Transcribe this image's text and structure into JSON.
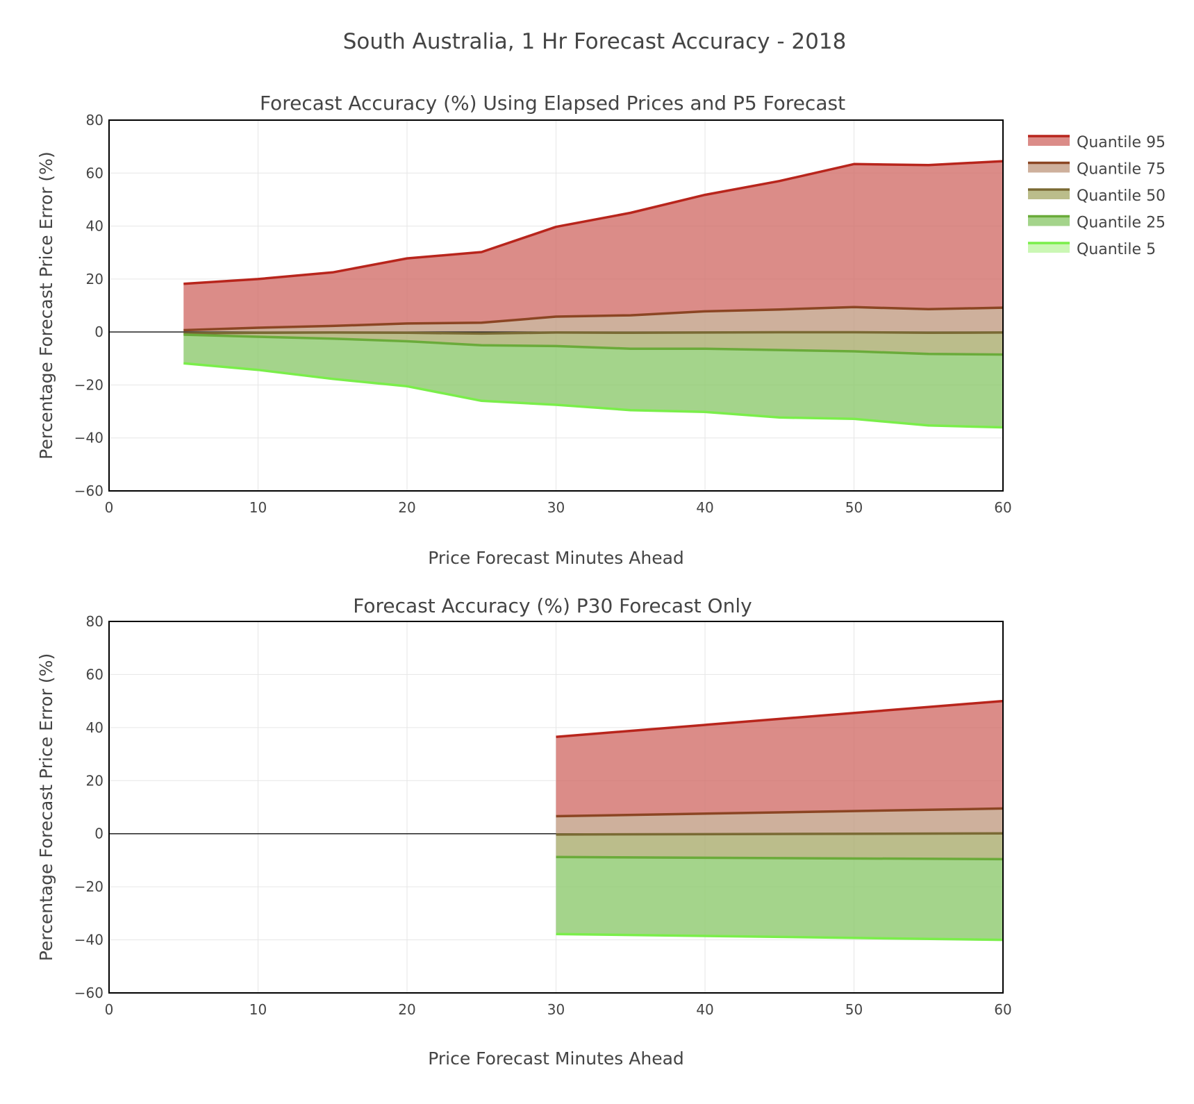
{
  "title": "South Australia, 1 Hr Forecast Accuracy - 2018",
  "colors": {
    "q95": {
      "line": "#b8251c",
      "fill": "#d16b67"
    },
    "q75": {
      "line": "#8b4523",
      "fill": "#c09a80"
    },
    "q50": {
      "line": "#7a6a34",
      "fill": "#a8ab6a"
    },
    "q25": {
      "line": "#6aab3a",
      "fill": "#8bc86a"
    },
    "q5": {
      "line": "#7aee4a",
      "fill": "#bdf5a0"
    }
  },
  "legend": [
    {
      "key": "q95",
      "label": "Quantile 95"
    },
    {
      "key": "q75",
      "label": "Quantile 75"
    },
    {
      "key": "q50",
      "label": "Quantile 50"
    },
    {
      "key": "q25",
      "label": "Quantile 25"
    },
    {
      "key": "q5",
      "label": "Quantile 5"
    }
  ],
  "chart_data": [
    {
      "type": "area",
      "title": "Forecast Accuracy (%) Using Elapsed Prices and P5 Forecast",
      "xlabel": "Price Forecast Minutes Ahead",
      "ylabel": "Percentage Forecast Price Error (%)",
      "xlim": [
        0,
        60
      ],
      "ylim": [
        -60,
        80
      ],
      "xticks": [
        0,
        10,
        20,
        30,
        40,
        50,
        60
      ],
      "yticks": [
        -60,
        -40,
        -20,
        0,
        20,
        40,
        60,
        80
      ],
      "ytick_labels": [
        "−60",
        "−40",
        "−20",
        "0",
        "20",
        "40",
        "60",
        "80"
      ],
      "grid": true,
      "x": [
        5,
        10,
        15,
        20,
        25,
        30,
        35,
        40,
        45,
        50,
        55,
        60
      ],
      "series": [
        {
          "name": "Quantile 95",
          "key": "q95",
          "values": [
            18.2,
            20,
            22.5,
            27.8,
            30.2,
            39.7,
            45,
            51.8,
            57,
            63.4,
            63,
            64.5
          ]
        },
        {
          "name": "Quantile 75",
          "key": "q75",
          "values": [
            0.7,
            1.6,
            2.3,
            3.2,
            3.5,
            5.8,
            6.3,
            7.8,
            8.5,
            9.4,
            8.6,
            9.2
          ]
        },
        {
          "name": "Quantile 50",
          "key": "q50",
          "values": [
            -0.5,
            -0.3,
            -0.2,
            -0.3,
            -0.6,
            -0.2,
            -0.3,
            -0.2,
            -0.1,
            -0.1,
            -0.3,
            -0.2
          ]
        },
        {
          "name": "Quantile 25",
          "key": "q25",
          "values": [
            -1,
            -1.8,
            -2.5,
            -3.5,
            -5,
            -5.3,
            -6.3,
            -6.3,
            -6.8,
            -7.3,
            -8.3,
            -8.5
          ]
        },
        {
          "name": "Quantile 5",
          "key": "q5",
          "values": [
            -11.8,
            -14.3,
            -17.7,
            -20.5,
            -26,
            -27.5,
            -29.5,
            -30.2,
            -32.3,
            -32.8,
            -35.3,
            -36
          ]
        }
      ]
    },
    {
      "type": "area",
      "title": "Forecast Accuracy (%) P30 Forecast Only",
      "xlabel": "Price Forecast Minutes Ahead",
      "ylabel": "Percentage Forecast Price Error (%)",
      "xlim": [
        0,
        60
      ],
      "ylim": [
        -60,
        80
      ],
      "xticks": [
        0,
        10,
        20,
        30,
        40,
        50,
        60
      ],
      "yticks": [
        -60,
        -40,
        -20,
        0,
        20,
        40,
        60,
        80
      ],
      "ytick_labels": [
        "−60",
        "−40",
        "−20",
        "0",
        "20",
        "40",
        "60",
        "80"
      ],
      "grid": true,
      "x": [
        30,
        60
      ],
      "series": [
        {
          "name": "Quantile 95",
          "key": "q95",
          "values": [
            36.5,
            50
          ]
        },
        {
          "name": "Quantile 75",
          "key": "q75",
          "values": [
            6.6,
            9.5
          ]
        },
        {
          "name": "Quantile 50",
          "key": "q50",
          "values": [
            -0.3,
            0.1
          ]
        },
        {
          "name": "Quantile 25",
          "key": "q25",
          "values": [
            -8.8,
            -9.6
          ]
        },
        {
          "name": "Quantile 5",
          "key": "q5",
          "values": [
            -37.8,
            -40
          ]
        }
      ]
    }
  ]
}
